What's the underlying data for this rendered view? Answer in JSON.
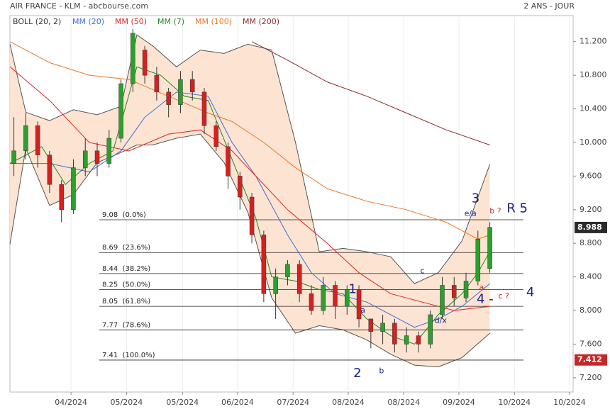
{
  "chart_data": {
    "type": "candlestick",
    "title": "AIR FRANCE - KLM - abcbourse.com",
    "period": "2 ANS - JOUR",
    "xlim": [
      0,
      142
    ],
    "xticks": [
      {
        "value": 15.4,
        "label": "04/2024"
      },
      {
        "value": 29.4,
        "label": "05/2024"
      },
      {
        "value": 43.5,
        "label": "05/2024"
      },
      {
        "value": 57.4,
        "label": "06/2024"
      },
      {
        "value": 71.4,
        "label": "07/2024"
      },
      {
        "value": 85.3,
        "label": "08/2024"
      },
      {
        "value": 99.3,
        "label": "08/2024"
      },
      {
        "value": 113.2,
        "label": "09/2024"
      },
      {
        "value": 127.2,
        "label": "10/2024"
      },
      {
        "value": 141.1,
        "label": "10/2024"
      }
    ],
    "ylim": [
      7.03,
      11.51
    ],
    "yticks": [
      {
        "value": 11.2,
        "label": "11.200"
      },
      {
        "value": 10.8,
        "label": "10.800"
      },
      {
        "value": 10.4,
        "label": "10.400"
      },
      {
        "value": 10,
        "label": "10.000"
      },
      {
        "value": 9.6,
        "label": "9.600"
      },
      {
        "value": 9.2,
        "label": "9.200"
      },
      {
        "value": 8.8,
        "label": "8.800"
      },
      {
        "value": 8.4,
        "label": "8.400"
      },
      {
        "value": 8,
        "label": "8.000"
      },
      {
        "value": 7.6,
        "label": "7.600"
      },
      {
        "value": 7.2,
        "label": "7.200"
      }
    ],
    "grid": true,
    "up_color": "#2ca02c",
    "down_color": "#d62020",
    "candles": {
      "x": [
        1,
        4,
        7,
        10,
        13,
        16,
        19,
        22,
        25,
        28,
        31,
        34,
        37,
        40,
        43,
        46,
        49,
        52,
        55,
        58,
        61,
        64,
        67,
        70,
        73,
        76,
        79,
        82,
        85,
        88,
        91,
        94,
        97,
        100,
        103,
        106,
        109,
        112,
        115,
        118,
        121
      ],
      "open": [
        9.75,
        9.9,
        10.2,
        9.85,
        9.5,
        9.2,
        9.7,
        9.9,
        9.75,
        10.05,
        10.7,
        11.1,
        10.8,
        10.6,
        10.45,
        10.75,
        10.6,
        10.2,
        9.95,
        9.6,
        9.35,
        8.9,
        8.2,
        8.4,
        8.55,
        8.2,
        8.0,
        8.3,
        8.05,
        8.25,
        7.9,
        7.75,
        7.85,
        7.6,
        7.7,
        7.6,
        7.95,
        8.3,
        8.15,
        8.35,
        8.5
      ],
      "high": [
        10.3,
        10.35,
        10.25,
        9.9,
        9.55,
        9.8,
        10.05,
        10.0,
        10.15,
        10.75,
        11.35,
        11.15,
        10.9,
        10.65,
        10.85,
        10.85,
        10.65,
        10.25,
        10.0,
        9.65,
        9.4,
        8.95,
        8.5,
        8.6,
        8.6,
        8.3,
        8.4,
        8.35,
        8.3,
        8.3,
        7.9,
        7.95,
        7.9,
        7.8,
        7.75,
        8.0,
        8.4,
        8.4,
        8.45,
        8.95,
        9.05
      ],
      "low": [
        9.6,
        9.8,
        9.7,
        9.4,
        9.05,
        9.15,
        9.6,
        9.6,
        9.7,
        10.0,
        10.6,
        10.7,
        10.5,
        10.3,
        10.35,
        10.5,
        10.1,
        9.9,
        9.45,
        9.2,
        8.8,
        8.1,
        7.9,
        8.3,
        8.1,
        7.95,
        7.95,
        7.9,
        7.95,
        7.8,
        7.55,
        7.6,
        7.5,
        7.5,
        7.5,
        7.55,
        7.9,
        8.05,
        8.1,
        8.3,
        8.45
      ],
      "close": [
        9.9,
        10.2,
        9.85,
        9.5,
        9.2,
        9.7,
        9.9,
        9.75,
        10.05,
        10.7,
        11.3,
        10.8,
        10.6,
        10.45,
        10.75,
        10.6,
        10.2,
        9.95,
        9.6,
        9.35,
        8.9,
        8.2,
        8.4,
        8.55,
        8.2,
        8.0,
        8.3,
        8.05,
        8.25,
        7.9,
        7.75,
        7.85,
        7.6,
        7.7,
        7.6,
        7.95,
        8.3,
        8.15,
        8.35,
        8.85,
        8.99
      ]
    },
    "bands": {
      "name": "BOLL (20, 2)",
      "color": "#555555",
      "fill": "#fde3d2",
      "x": [
        0,
        4,
        10,
        16,
        22,
        28,
        32,
        36,
        42,
        48,
        54,
        60,
        66,
        72,
        78,
        84,
        90,
        96,
        102,
        108,
        114,
        121
      ],
      "upper": [
        11.17,
        10.36,
        10.26,
        10.39,
        10.33,
        10.43,
        11.28,
        11.15,
        10.9,
        11.1,
        11.06,
        11.17,
        11.1,
        10.0,
        8.7,
        8.74,
        8.7,
        8.64,
        8.32,
        8.45,
        8.83,
        9.74
      ],
      "lower": [
        8.79,
        9.93,
        9.25,
        9.38,
        9.76,
        9.88,
        9.97,
        9.97,
        10.05,
        10.1,
        9.76,
        9.17,
        8.15,
        7.73,
        7.82,
        7.77,
        7.65,
        7.48,
        7.35,
        7.33,
        7.44,
        7.73
      ]
    },
    "series": [
      {
        "name": "MM (20)",
        "color": "#3a6fd8",
        "x": [
          0,
          10,
          20,
          28,
          34,
          42,
          50,
          56,
          62,
          70,
          76,
          82,
          90,
          96,
          102,
          108,
          114,
          121
        ],
        "values": [
          9.75,
          9.75,
          9.65,
          9.9,
          10.3,
          10.6,
          10.55,
          10.0,
          9.6,
          8.9,
          8.45,
          8.2,
          8.1,
          7.95,
          7.8,
          7.9,
          8.05,
          8.32
        ]
      },
      {
        "name": "MM (50)",
        "color": "#dd2222",
        "x": [
          0,
          10,
          20,
          30,
          40,
          48,
          56,
          62,
          70,
          80,
          88,
          96,
          104,
          112,
          121
        ],
        "values": [
          10.9,
          10.5,
          10.0,
          9.9,
          10.1,
          10.15,
          9.9,
          9.6,
          9.2,
          8.8,
          8.45,
          8.2,
          8.1,
          8.0,
          8.05
        ]
      },
      {
        "name": "MM (7)",
        "color": "#228822",
        "x": [
          0,
          8,
          14,
          20,
          26,
          32,
          38,
          44,
          50,
          56,
          62,
          66,
          72,
          78,
          84,
          90,
          96,
          102,
          108,
          114,
          118,
          121
        ],
        "values": [
          9.75,
          9.95,
          9.5,
          9.75,
          9.9,
          10.9,
          10.8,
          10.55,
          10.5,
          9.8,
          9.1,
          8.4,
          8.35,
          8.25,
          8.2,
          7.9,
          7.7,
          7.6,
          7.95,
          8.2,
          8.45,
          8.7
        ]
      },
      {
        "name": "MM (100)",
        "color": "#ee7722",
        "x": [
          0,
          10,
          20,
          30,
          40,
          50,
          56,
          64,
          72,
          80,
          90,
          100,
          110,
          118,
          121
        ],
        "values": [
          11.2,
          10.95,
          10.8,
          10.75,
          10.55,
          10.35,
          10.25,
          10.0,
          9.7,
          9.45,
          9.3,
          9.2,
          9.05,
          8.85,
          8.9
        ]
      },
      {
        "name": "MM (200)",
        "color": "#8b2b2b",
        "x": [
          61,
          70,
          80,
          90,
          100,
          110,
          121
        ],
        "values": [
          11.2,
          10.98,
          10.72,
          10.55,
          10.35,
          10.15,
          9.97
        ]
      }
    ],
    "fib_levels": [
      {
        "value": 9.08,
        "label": "9.08  (0.0%)"
      },
      {
        "value": 8.69,
        "label": "8.69  (23.6%)"
      },
      {
        "value": 8.44,
        "label": "8.44  (38.2%)"
      },
      {
        "value": 8.25,
        "label": "8.25  (50.0%)"
      },
      {
        "value": 8.05,
        "label": "8.05  (61.8%)"
      },
      {
        "value": 7.77,
        "label": "7.77  (78.6%)"
      },
      {
        "value": 7.41,
        "label": "7.41  (100.0%)"
      }
    ],
    "annotations": [
      {
        "text": "3",
        "x": 117.4,
        "y": 9.33,
        "color": "#1a237e"
      },
      {
        "text": "e/a",
        "x": 116.1,
        "y": 9.15,
        "color": "#1a237e"
      },
      {
        "text": "b ?",
        "x": 122.4,
        "y": 9.18,
        "color": "#c62828"
      },
      {
        "text": "R 5",
        "x": 127.9,
        "y": 9.21,
        "color": "#1a237e"
      },
      {
        "text": "c",
        "x": 104,
        "y": 8.47,
        "color": "#1a237e"
      },
      {
        "text": "1",
        "x": 86.4,
        "y": 8.25,
        "color": "#1a237e"
      },
      {
        "text": "a",
        "x": 89,
        "y": 8.0,
        "color": "#1a237e"
      },
      {
        "text": "a",
        "x": 118.9,
        "y": 8.27,
        "color": "#c62828"
      },
      {
        "text": "4 -",
        "x": 119.8,
        "y": 8.13,
        "color": "#1a237e"
      },
      {
        "text": "c ?",
        "x": 124.5,
        "y": 8.17,
        "color": "#c62828"
      },
      {
        "text": "4",
        "x": 131.2,
        "y": 8.21,
        "color": "#1a237e"
      },
      {
        "text": "d/x",
        "x": 108.6,
        "y": 7.88,
        "color": "#1a237e"
      },
      {
        "text": "2",
        "x": 87.6,
        "y": 7.25,
        "color": "#1a237e"
      },
      {
        "text": "b",
        "x": 93.7,
        "y": 7.28,
        "color": "#1a237e"
      }
    ],
    "last_price": 8.988,
    "low_price": 7.412
  }
}
